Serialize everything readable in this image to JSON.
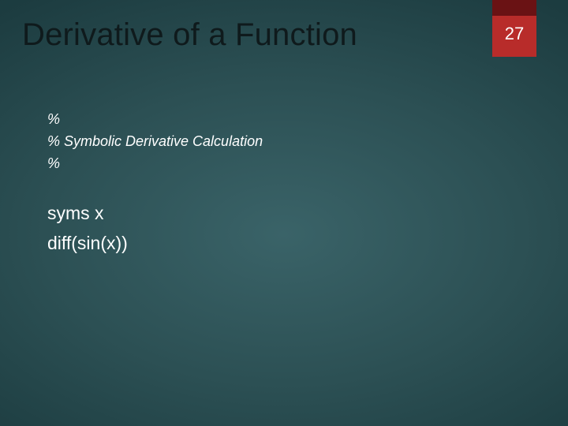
{
  "slide": {
    "title": "Derivative of a Function",
    "page_number": "27",
    "comments": {
      "line1": "%",
      "line2": "% Symbolic Derivative Calculation",
      "line3": "%"
    },
    "code": {
      "line1": "syms x",
      "line2": "diff(sin(x))"
    }
  },
  "style": {
    "badge_top_color": "#6a1214",
    "badge_body_color": "#b82c2a",
    "title_color": "#0f1a1c",
    "text_color": "#ffffff",
    "bg_gradient_inner": "#3a6368",
    "bg_gradient_outer": "#132e32",
    "title_fontsize": 40,
    "comment_fontsize": 18,
    "code_fontsize": 23
  }
}
